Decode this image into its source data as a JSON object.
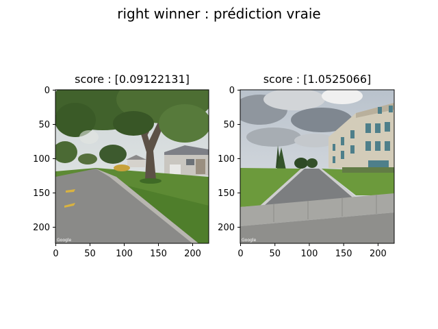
{
  "suptitle": "right winner : prédiction vraie",
  "panels": [
    {
      "title": "score : [0.09122131]",
      "image": "street-view-residential",
      "watermark": "Google",
      "x_ticks": [
        "0",
        "50",
        "100",
        "150",
        "200"
      ],
      "y_ticks": [
        "0",
        "50",
        "100",
        "150",
        "200"
      ]
    },
    {
      "title": "score : [1.0525066]",
      "image": "street-view-office-building",
      "watermark": "Google",
      "x_ticks": [
        "0",
        "50",
        "100",
        "150",
        "200"
      ],
      "y_ticks": [
        "0",
        "50",
        "100",
        "150",
        "200"
      ]
    }
  ],
  "axis": {
    "xlim": [
      0,
      224
    ],
    "ylim": [
      224,
      0
    ]
  }
}
